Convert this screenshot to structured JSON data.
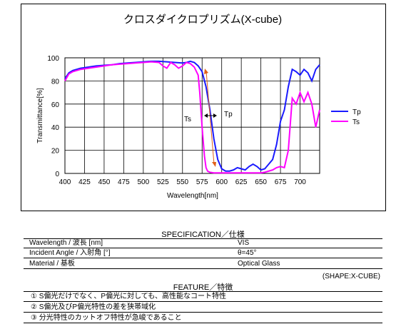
{
  "chart_data": {
    "type": "line",
    "title": "クロスダイクロプリズム(X-cube)",
    "xlabel": "Wavelength[nm]",
    "ylabel": "Transmittance[%]",
    "xlim": [
      400,
      725
    ],
    "ylim": [
      0,
      100
    ],
    "xticks": [
      400,
      425,
      450,
      475,
      500,
      525,
      550,
      575,
      600,
      625,
      650,
      675,
      700
    ],
    "yticks": [
      0,
      20,
      40,
      60,
      80,
      100
    ],
    "grid": true,
    "legend": "right",
    "series": [
      {
        "name": "Tp",
        "color": "#1a1aff",
        "x": [
          400,
          405,
          410,
          420,
          430,
          440,
          450,
          460,
          470,
          480,
          490,
          500,
          510,
          520,
          530,
          540,
          550,
          555,
          560,
          565,
          570,
          575,
          580,
          585,
          590,
          595,
          600,
          605,
          610,
          615,
          620,
          625,
          630,
          635,
          640,
          645,
          650,
          655,
          660,
          665,
          670,
          675,
          680,
          685,
          690,
          695,
          700,
          705,
          710,
          715,
          720,
          725
        ],
        "values": [
          82,
          87,
          89,
          91,
          92,
          93,
          93.5,
          94,
          95,
          95.5,
          96,
          96.5,
          97,
          97,
          96.5,
          96,
          95.5,
          96,
          97,
          96,
          93,
          88,
          75,
          55,
          30,
          12,
          4,
          2,
          2,
          3,
          5,
          4,
          3,
          6,
          8,
          6,
          3,
          4,
          8,
          12,
          25,
          45,
          55,
          75,
          90,
          88,
          85,
          90,
          87,
          80,
          90,
          94
        ]
      },
      {
        "name": "Ts",
        "color": "#ff00ff",
        "x": [
          400,
          405,
          410,
          420,
          430,
          440,
          450,
          460,
          470,
          480,
          490,
          500,
          510,
          520,
          525,
          530,
          535,
          540,
          545,
          550,
          555,
          560,
          565,
          570,
          572,
          575,
          578,
          580,
          582,
          585,
          590,
          595,
          600,
          610,
          620,
          630,
          640,
          650,
          655,
          660,
          665,
          670,
          675,
          680,
          685,
          690,
          695,
          700,
          705,
          710,
          715,
          720,
          725
        ],
        "values": [
          80,
          86,
          88,
          90,
          91,
          92,
          93,
          94,
          94.5,
          95,
          95.5,
          96,
          96.5,
          96,
          93,
          91,
          96,
          94,
          91,
          93,
          96,
          95,
          92,
          85,
          70,
          40,
          15,
          5,
          2,
          1,
          0.5,
          0.5,
          0.5,
          0.5,
          0.5,
          0.5,
          0.5,
          0.5,
          1,
          2,
          3,
          5,
          6,
          5,
          20,
          65,
          60,
          70,
          62,
          70,
          60,
          40,
          55
        ]
      }
    ],
    "annotations": [
      {
        "text": "Ts",
        "x": 565,
        "y": 48
      },
      {
        "text": "Tp",
        "x": 594,
        "y": 50
      }
    ]
  },
  "spec": {
    "title": "SPECIFICATION／仕様",
    "rows": [
      {
        "label": "Wavelength / 波長 [nm]",
        "value": "VIS"
      },
      {
        "label": "Incident Angle / 入射角 [°]",
        "value": "θ=45°"
      },
      {
        "label": "Material / 基板",
        "value": "Optical Glass"
      }
    ],
    "shape_note": "(SHAPE:X-CUBE)"
  },
  "feature": {
    "title": "FEATURE／特徴",
    "items": [
      "① S偏光だけでなく、P偏光に対しても、高性能なコート特性",
      "② S偏光及びP偏光特性の差を狭帯域化",
      "③ 分光特性のカットオフ特性が急峻であること"
    ]
  }
}
